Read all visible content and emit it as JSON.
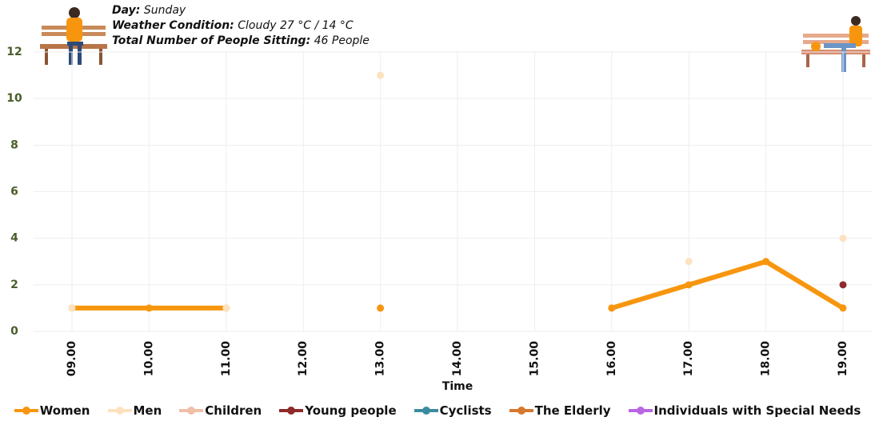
{
  "chart_data": {
    "type": "line",
    "info": [
      {
        "label": "Day:",
        "value": "Sunday"
      },
      {
        "label": "Weather Condition:",
        "value": "Cloudy 27 °C / 14 °C"
      },
      {
        "label": "Total Number of People Sitting:",
        "value": "46 People"
      }
    ],
    "x_label": "Time",
    "categories": [
      "09.00",
      "10.00",
      "11.00",
      "12.00",
      "13.00",
      "14.00",
      "15.00",
      "16.00",
      "17.00",
      "18.00",
      "19.00"
    ],
    "series": [
      {
        "name": "Women",
        "color": "#f7960e",
        "values": [
          1,
          1,
          1,
          null,
          1,
          null,
          null,
          1,
          2,
          3,
          1
        ]
      },
      {
        "name": "Men",
        "color": "#fde2c0",
        "values": [
          1,
          null,
          1,
          null,
          11,
          null,
          null,
          null,
          3,
          null,
          4
        ]
      },
      {
        "name": "Children",
        "color": "#efbfa8",
        "values": [
          null,
          null,
          null,
          null,
          null,
          null,
          null,
          null,
          null,
          null,
          null
        ]
      },
      {
        "name": "Young people",
        "color": "#8e2b2b",
        "values": [
          null,
          null,
          null,
          null,
          null,
          null,
          null,
          null,
          null,
          null,
          2
        ]
      },
      {
        "name": "Cyclists",
        "color": "#3b8ba0",
        "values": [
          null,
          null,
          null,
          null,
          null,
          null,
          null,
          null,
          null,
          null,
          null
        ]
      },
      {
        "name": "The Elderly",
        "color": "#d6782e",
        "values": [
          null,
          null,
          null,
          null,
          null,
          null,
          null,
          null,
          null,
          null,
          null
        ]
      },
      {
        "name": "Individuals with Special Needs",
        "color": "#b866e6",
        "values": [
          null,
          null,
          null,
          null,
          null,
          null,
          null,
          null,
          null,
          null,
          null
        ]
      }
    ],
    "ylim": [
      0,
      12
    ],
    "yticks": [
      0,
      2,
      4,
      6,
      8,
      10,
      12
    ],
    "grid": true
  }
}
